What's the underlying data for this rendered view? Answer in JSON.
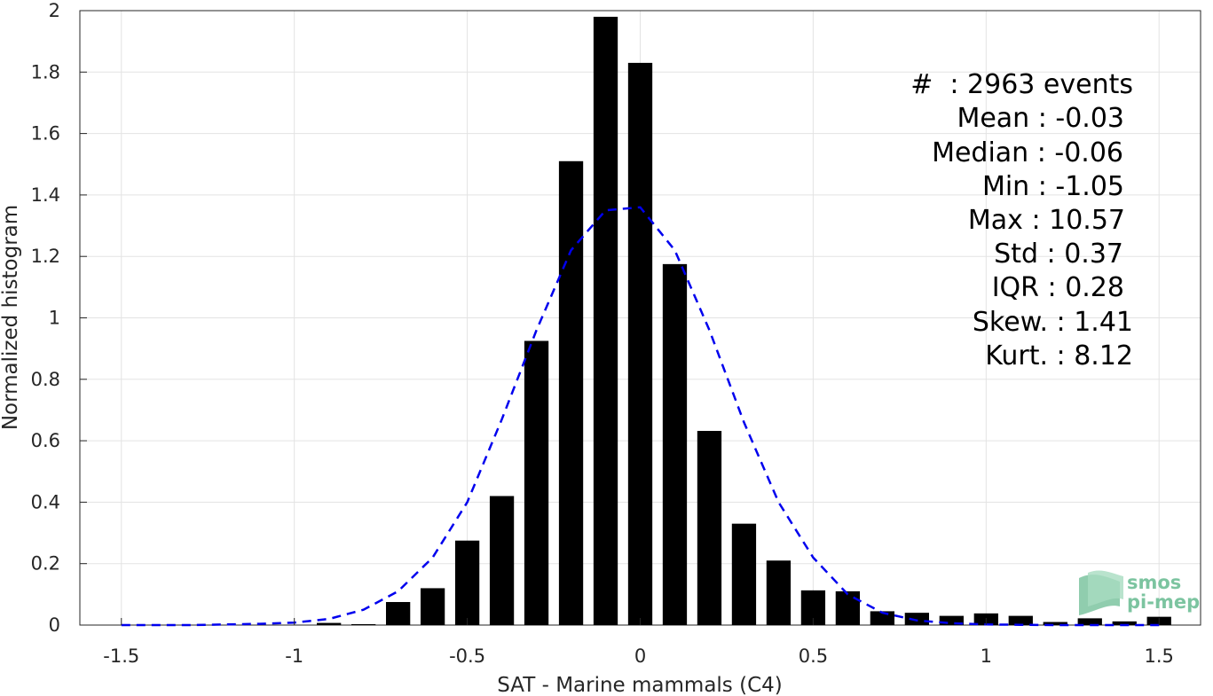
{
  "chart_data": {
    "type": "bar",
    "xlabel": "SAT - Marine mammals (C4)",
    "ylabel": "Normalized histogram",
    "xlim": [
      -1.62,
      1.62
    ],
    "ylim": [
      0,
      2
    ],
    "grid": true,
    "x_ticks": [
      "-1.5",
      "-1",
      "-0.5",
      "0",
      "0.5",
      "1",
      "1.5"
    ],
    "y_ticks": [
      "0",
      "0.2",
      "0.4",
      "0.6",
      "0.8",
      "1",
      "1.2",
      "1.4",
      "1.6",
      "1.8",
      "2"
    ],
    "bar_width": 0.07,
    "series": [
      {
        "x": [
          -1.5,
          -1.4,
          -1.3,
          -1.2,
          -1.1,
          -1.0,
          -0.9,
          -0.8,
          -0.7,
          -0.6,
          -0.5,
          -0.4,
          -0.3,
          -0.2,
          -0.1,
          0.0,
          0.1,
          0.2,
          0.3,
          0.4,
          0.5,
          0.6,
          0.7,
          0.8,
          0.9,
          1.0,
          1.1,
          1.2,
          1.3,
          1.4,
          1.5
        ],
        "values": [
          0,
          0,
          0,
          0,
          0,
          0,
          0.007,
          0.003,
          0.075,
          0.12,
          0.275,
          0.42,
          0.925,
          1.51,
          1.98,
          1.83,
          1.175,
          0.632,
          0.33,
          0.21,
          0.113,
          0.11,
          0.045,
          0.04,
          0.03,
          0.038,
          0.03,
          0.01,
          0.022,
          0.012,
          0.027
        ],
        "color": "#000000"
      },
      {
        "type": "line",
        "style": "dashed",
        "color": "#0000ee",
        "x": [
          -1.5,
          -1.4,
          -1.3,
          -1.2,
          -1.1,
          -1.0,
          -0.9,
          -0.8,
          -0.7,
          -0.6,
          -0.5,
          -0.4,
          -0.3,
          -0.2,
          -0.1,
          0.0,
          0.1,
          0.2,
          0.3,
          0.4,
          0.5,
          0.6,
          0.7,
          0.8,
          0.9,
          1.0,
          1.1,
          1.2,
          1.3,
          1.4,
          1.5
        ],
        "values": [
          0,
          0,
          0,
          0.002,
          0.004,
          0.008,
          0.02,
          0.05,
          0.11,
          0.22,
          0.4,
          0.67,
          0.96,
          1.22,
          1.35,
          1.36,
          1.22,
          0.96,
          0.66,
          0.4,
          0.22,
          0.1,
          0.04,
          0.015,
          0.006,
          0.002,
          0.001,
          0,
          0,
          0,
          0
        ]
      }
    ],
    "stats_lines": [
      "#  : 2963 events",
      "Mean : -0.03",
      "Median : -0.06",
      "Min : -1.05",
      "Max : 10.57",
      "Std : 0.37",
      "IQR : 0.28",
      "Skew. : 1.41",
      "Kurt. : 8.12"
    ],
    "logo": {
      "line1": "smos",
      "line2": "pi-mep",
      "color": "#7cc4a0"
    }
  }
}
